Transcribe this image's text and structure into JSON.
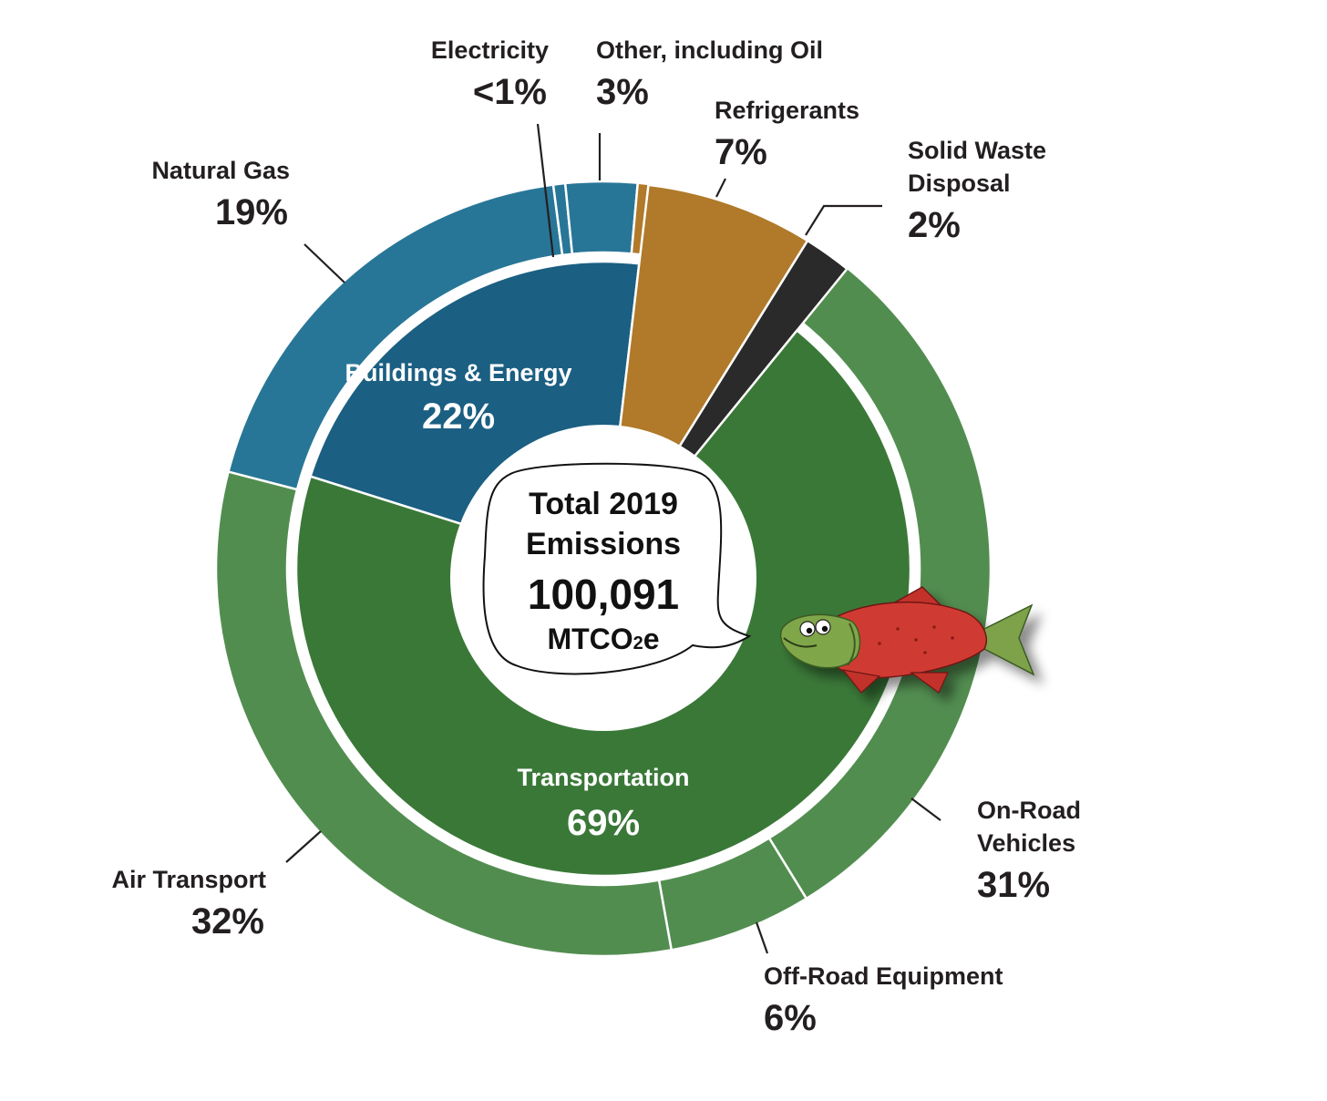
{
  "chart_data": {
    "type": "pie",
    "subtype": "donut-sunburst",
    "center": {
      "line1": "Total 2019",
      "line2": "Emissions",
      "value": "100,091",
      "unit_main": "MTCO",
      "unit_sub": "2",
      "unit_end": "e"
    },
    "inner_ring": [
      {
        "name": "Buildings & Energy",
        "label": "22%",
        "value": 22,
        "color": "#1b5f82",
        "show_label": true
      },
      {
        "name": "Refrigerants",
        "label": "7%",
        "value": 7,
        "color": "#b07a2a",
        "show_label": false
      },
      {
        "name": "Solid Waste Disposal",
        "label": "2%",
        "value": 2,
        "color": "#2a2a2a",
        "show_label": false
      },
      {
        "name": "Transportation",
        "label": "69%",
        "value": 69,
        "color": "#3a7838",
        "show_label": true
      }
    ],
    "outer_ring": [
      {
        "name": "Electricity",
        "label": "<1%",
        "value": 0.5,
        "color": "#287697"
      },
      {
        "name": "Other, including Oil",
        "label": "3%",
        "value": 3,
        "color": "#287697"
      },
      {
        "name": "Refrigerants",
        "label": "7%",
        "value": 7,
        "color": "#b07a2a"
      },
      {
        "name": "Solid Waste Disposal",
        "label": "2%",
        "value": 2,
        "color": "#2a2a2a"
      },
      {
        "name": "On-Road Vehicles",
        "label": "31%",
        "value": 31,
        "color": "#528d50"
      },
      {
        "name": "Off-Road Equipment",
        "label": "6%",
        "value": 6,
        "color": "#528d50"
      },
      {
        "name": "Air Transport",
        "label": "32%",
        "value": 32,
        "color": "#528d50"
      },
      {
        "name": "Natural Gas",
        "label": "19%",
        "value": 19,
        "color": "#287697"
      }
    ],
    "outer_labels": [
      {
        "lines": [
          "Electricity"
        ],
        "pct": "<1%"
      },
      {
        "lines": [
          "Other, including Oil"
        ],
        "pct": "3%"
      },
      {
        "lines": [
          "Refrigerants"
        ],
        "pct": "7%"
      },
      {
        "lines": [
          "Solid Waste",
          "Disposal"
        ],
        "pct": "2%"
      },
      {
        "lines": [
          "On-Road",
          "Vehicles"
        ],
        "pct": "31%"
      },
      {
        "lines": [
          "Off-Road Equipment"
        ],
        "pct": "6%"
      },
      {
        "lines": [
          "Air Transport"
        ],
        "pct": "32%"
      },
      {
        "lines": [
          "Natural Gas"
        ],
        "pct": "19%"
      }
    ],
    "mascot": "salmon-illustration"
  }
}
